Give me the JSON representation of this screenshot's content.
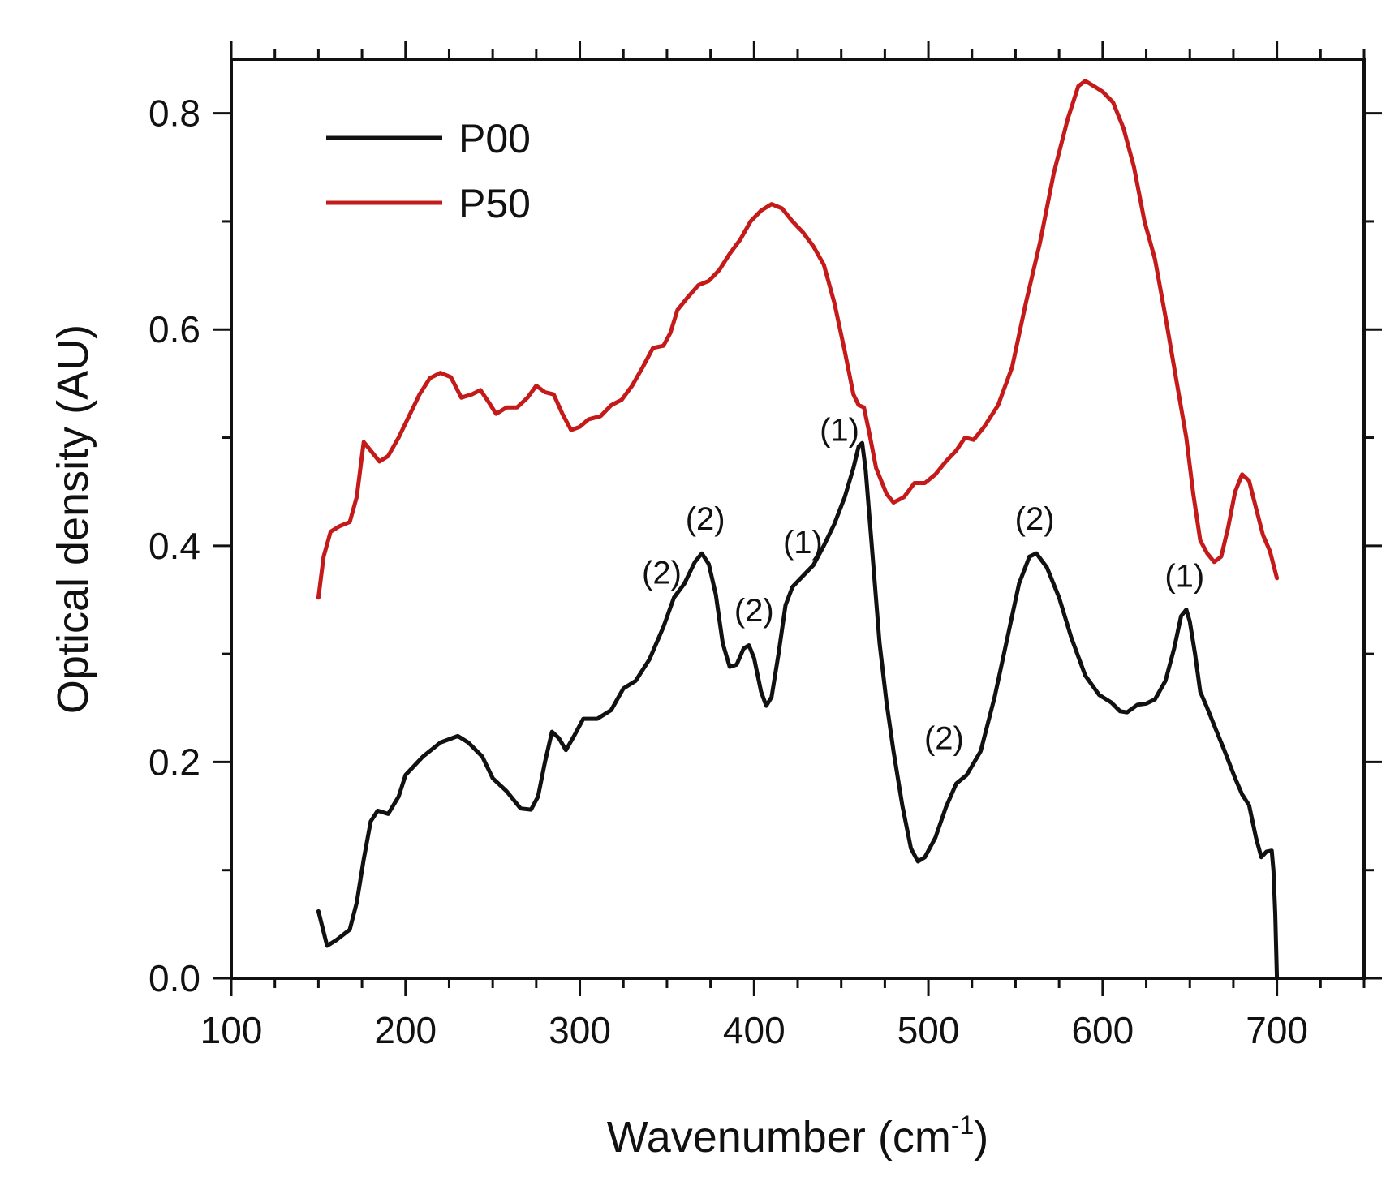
{
  "chart_data": {
    "type": "line",
    "xlabel": "Wavenumber (cm",
    "xlabel_sup": "-1",
    "xlabel_end": ")",
    "ylabel": "Optical density (AU)",
    "xlim": [
      100,
      750
    ],
    "ylim": [
      0,
      0.85
    ],
    "xticks": [
      100,
      200,
      300,
      400,
      500,
      600,
      700
    ],
    "yticks": [
      0.0,
      0.2,
      0.4,
      0.6,
      0.8
    ],
    "xtick_labels": [
      "100",
      "200",
      "300",
      "400",
      "500",
      "600",
      "700"
    ],
    "ytick_labels": [
      "0.0",
      "0.2",
      "0.4",
      "0.6",
      "0.8"
    ],
    "legend_position": "top-left",
    "series": [
      {
        "name": "P00",
        "color": "#111111",
        "points": [
          [
            150,
            0.062
          ],
          [
            155,
            0.03
          ],
          [
            160,
            0.035
          ],
          [
            168,
            0.045
          ],
          [
            172,
            0.07
          ],
          [
            176,
            0.11
          ],
          [
            180,
            0.145
          ],
          [
            184,
            0.155
          ],
          [
            190,
            0.152
          ],
          [
            196,
            0.168
          ],
          [
            200,
            0.188
          ],
          [
            210,
            0.205
          ],
          [
            220,
            0.218
          ],
          [
            230,
            0.224
          ],
          [
            236,
            0.218
          ],
          [
            244,
            0.205
          ],
          [
            250,
            0.185
          ],
          [
            258,
            0.173
          ],
          [
            266,
            0.157
          ],
          [
            272,
            0.156
          ],
          [
            276,
            0.168
          ],
          [
            280,
            0.2
          ],
          [
            284,
            0.228
          ],
          [
            288,
            0.222
          ],
          [
            292,
            0.211
          ],
          [
            297,
            0.225
          ],
          [
            302,
            0.24
          ],
          [
            310,
            0.24
          ],
          [
            318,
            0.248
          ],
          [
            325,
            0.268
          ],
          [
            332,
            0.275
          ],
          [
            340,
            0.295
          ],
          [
            348,
            0.325
          ],
          [
            354,
            0.352
          ],
          [
            360,
            0.365
          ],
          [
            366,
            0.385
          ],
          [
            370,
            0.393
          ],
          [
            374,
            0.383
          ],
          [
            378,
            0.355
          ],
          [
            382,
            0.31
          ],
          [
            386,
            0.288
          ],
          [
            390,
            0.29
          ],
          [
            394,
            0.305
          ],
          [
            397,
            0.308
          ],
          [
            400,
            0.296
          ],
          [
            404,
            0.265
          ],
          [
            407,
            0.252
          ],
          [
            410,
            0.26
          ],
          [
            414,
            0.3
          ],
          [
            418,
            0.345
          ],
          [
            422,
            0.362
          ],
          [
            428,
            0.372
          ],
          [
            434,
            0.382
          ],
          [
            440,
            0.4
          ],
          [
            446,
            0.42
          ],
          [
            452,
            0.445
          ],
          [
            457,
            0.472
          ],
          [
            460,
            0.492
          ],
          [
            462,
            0.495
          ],
          [
            464,
            0.47
          ],
          [
            468,
            0.39
          ],
          [
            472,
            0.31
          ],
          [
            476,
            0.255
          ],
          [
            480,
            0.21
          ],
          [
            485,
            0.16
          ],
          [
            490,
            0.12
          ],
          [
            494,
            0.108
          ],
          [
            498,
            0.112
          ],
          [
            504,
            0.13
          ],
          [
            510,
            0.158
          ],
          [
            516,
            0.18
          ],
          [
            522,
            0.188
          ],
          [
            530,
            0.21
          ],
          [
            538,
            0.26
          ],
          [
            546,
            0.32
          ],
          [
            552,
            0.365
          ],
          [
            558,
            0.39
          ],
          [
            562,
            0.393
          ],
          [
            568,
            0.38
          ],
          [
            575,
            0.352
          ],
          [
            582,
            0.315
          ],
          [
            590,
            0.28
          ],
          [
            598,
            0.262
          ],
          [
            605,
            0.255
          ],
          [
            610,
            0.247
          ],
          [
            614,
            0.246
          ],
          [
            620,
            0.253
          ],
          [
            625,
            0.254
          ],
          [
            630,
            0.258
          ],
          [
            636,
            0.275
          ],
          [
            641,
            0.305
          ],
          [
            645,
            0.335
          ],
          [
            648,
            0.341
          ],
          [
            650,
            0.33
          ],
          [
            653,
            0.3
          ],
          [
            656,
            0.265
          ],
          [
            660,
            0.25
          ],
          [
            665,
            0.23
          ],
          [
            670,
            0.21
          ],
          [
            676,
            0.185
          ],
          [
            680,
            0.17
          ],
          [
            684,
            0.16
          ],
          [
            688,
            0.13
          ],
          [
            691,
            0.112
          ],
          [
            694,
            0.117
          ],
          [
            697,
            0.118
          ],
          [
            698,
            0.1
          ],
          [
            699,
            0.06
          ],
          [
            700,
            0.0
          ]
        ]
      },
      {
        "name": "P50",
        "color": "#c41a1a",
        "points": [
          [
            150,
            0.352
          ],
          [
            153,
            0.39
          ],
          [
            157,
            0.413
          ],
          [
            162,
            0.418
          ],
          [
            168,
            0.422
          ],
          [
            172,
            0.445
          ],
          [
            176,
            0.496
          ],
          [
            180,
            0.488
          ],
          [
            185,
            0.478
          ],
          [
            190,
            0.483
          ],
          [
            196,
            0.5
          ],
          [
            202,
            0.52
          ],
          [
            208,
            0.54
          ],
          [
            214,
            0.555
          ],
          [
            220,
            0.56
          ],
          [
            226,
            0.556
          ],
          [
            232,
            0.537
          ],
          [
            238,
            0.54
          ],
          [
            243,
            0.544
          ],
          [
            248,
            0.532
          ],
          [
            252,
            0.522
          ],
          [
            258,
            0.528
          ],
          [
            264,
            0.528
          ],
          [
            270,
            0.537
          ],
          [
            275,
            0.548
          ],
          [
            280,
            0.542
          ],
          [
            285,
            0.54
          ],
          [
            290,
            0.522
          ],
          [
            295,
            0.507
          ],
          [
            300,
            0.51
          ],
          [
            305,
            0.517
          ],
          [
            312,
            0.52
          ],
          [
            318,
            0.53
          ],
          [
            324,
            0.535
          ],
          [
            330,
            0.548
          ],
          [
            336,
            0.565
          ],
          [
            342,
            0.583
          ],
          [
            348,
            0.585
          ],
          [
            352,
            0.597
          ],
          [
            356,
            0.618
          ],
          [
            362,
            0.63
          ],
          [
            368,
            0.641
          ],
          [
            374,
            0.645
          ],
          [
            380,
            0.655
          ],
          [
            386,
            0.67
          ],
          [
            392,
            0.683
          ],
          [
            398,
            0.7
          ],
          [
            404,
            0.71
          ],
          [
            410,
            0.716
          ],
          [
            416,
            0.712
          ],
          [
            422,
            0.7
          ],
          [
            428,
            0.69
          ],
          [
            434,
            0.677
          ],
          [
            440,
            0.66
          ],
          [
            446,
            0.625
          ],
          [
            452,
            0.58
          ],
          [
            457,
            0.54
          ],
          [
            460,
            0.53
          ],
          [
            463,
            0.528
          ],
          [
            466,
            0.505
          ],
          [
            470,
            0.472
          ],
          [
            476,
            0.448
          ],
          [
            480,
            0.44
          ],
          [
            486,
            0.445
          ],
          [
            492,
            0.458
          ],
          [
            498,
            0.458
          ],
          [
            504,
            0.466
          ],
          [
            510,
            0.478
          ],
          [
            516,
            0.488
          ],
          [
            521,
            0.5
          ],
          [
            526,
            0.498
          ],
          [
            532,
            0.51
          ],
          [
            540,
            0.53
          ],
          [
            548,
            0.565
          ],
          [
            556,
            0.625
          ],
          [
            564,
            0.68
          ],
          [
            572,
            0.745
          ],
          [
            580,
            0.795
          ],
          [
            586,
            0.825
          ],
          [
            590,
            0.83
          ],
          [
            595,
            0.825
          ],
          [
            600,
            0.82
          ],
          [
            606,
            0.81
          ],
          [
            612,
            0.786
          ],
          [
            618,
            0.75
          ],
          [
            624,
            0.7
          ],
          [
            630,
            0.665
          ],
          [
            636,
            0.612
          ],
          [
            642,
            0.556
          ],
          [
            648,
            0.5
          ],
          [
            652,
            0.448
          ],
          [
            656,
            0.405
          ],
          [
            660,
            0.393
          ],
          [
            664,
            0.385
          ],
          [
            668,
            0.39
          ],
          [
            672,
            0.417
          ],
          [
            676,
            0.45
          ],
          [
            680,
            0.466
          ],
          [
            684,
            0.46
          ],
          [
            688,
            0.435
          ],
          [
            692,
            0.41
          ],
          [
            696,
            0.395
          ],
          [
            700,
            0.37
          ]
        ]
      }
    ],
    "annotations": [
      {
        "text": "(2)",
        "x": 347,
        "y": 0.365
      },
      {
        "text": "(2)",
        "x": 372,
        "y": 0.415
      },
      {
        "text": "(2)",
        "x": 400,
        "y": 0.33
      },
      {
        "text": "(1)",
        "x": 428,
        "y": 0.393
      },
      {
        "text": "(1)",
        "x": 449,
        "y": 0.497
      },
      {
        "text": "(2)",
        "x": 509,
        "y": 0.212
      },
      {
        "text": "(2)",
        "x": 561,
        "y": 0.415
      },
      {
        "text": "(1)",
        "x": 647,
        "y": 0.362
      }
    ]
  }
}
